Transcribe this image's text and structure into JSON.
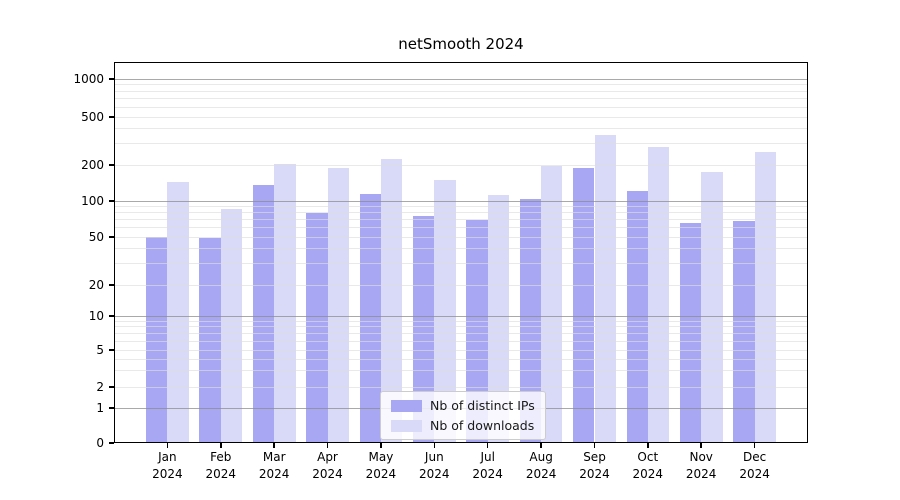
{
  "chart_data": {
    "type": "bar",
    "title": "netSmooth 2024",
    "categories": [
      "Jan 2024",
      "Feb 2024",
      "Mar 2024",
      "Apr 2024",
      "May 2024",
      "Jun 2024",
      "Jul 2024",
      "Aug 2024",
      "Sep 2024",
      "Oct 2024",
      "Nov 2024",
      "Dec 2024"
    ],
    "series": [
      {
        "name": "Nb of distinct IPs",
        "color": "#a7a7f3",
        "values": [
          50,
          49,
          135,
          80,
          115,
          75,
          70,
          105,
          190,
          122,
          65,
          68
        ]
      },
      {
        "name": "Nb of downloads",
        "color": "#d9d9f8",
        "values": [
          145,
          85,
          205,
          190,
          225,
          150,
          113,
          195,
          355,
          280,
          175,
          255
        ]
      }
    ],
    "xlabel": "",
    "ylabel": "",
    "yscale": "log (with 0 baseline)",
    "yticks": [
      0,
      1,
      2,
      5,
      10,
      20,
      50,
      100,
      200,
      500,
      1000
    ],
    "ylim": [
      0,
      1400
    ],
    "grid": "major and minor horizontal gridlines drawn over bars",
    "legend_position": "lower center"
  },
  "colors": {
    "background": "#ffffff",
    "axis": "#000000",
    "major_grid": "#a9a9a9",
    "minor_grid": "#e6e6e6",
    "legend_border": "#cccccc"
  }
}
